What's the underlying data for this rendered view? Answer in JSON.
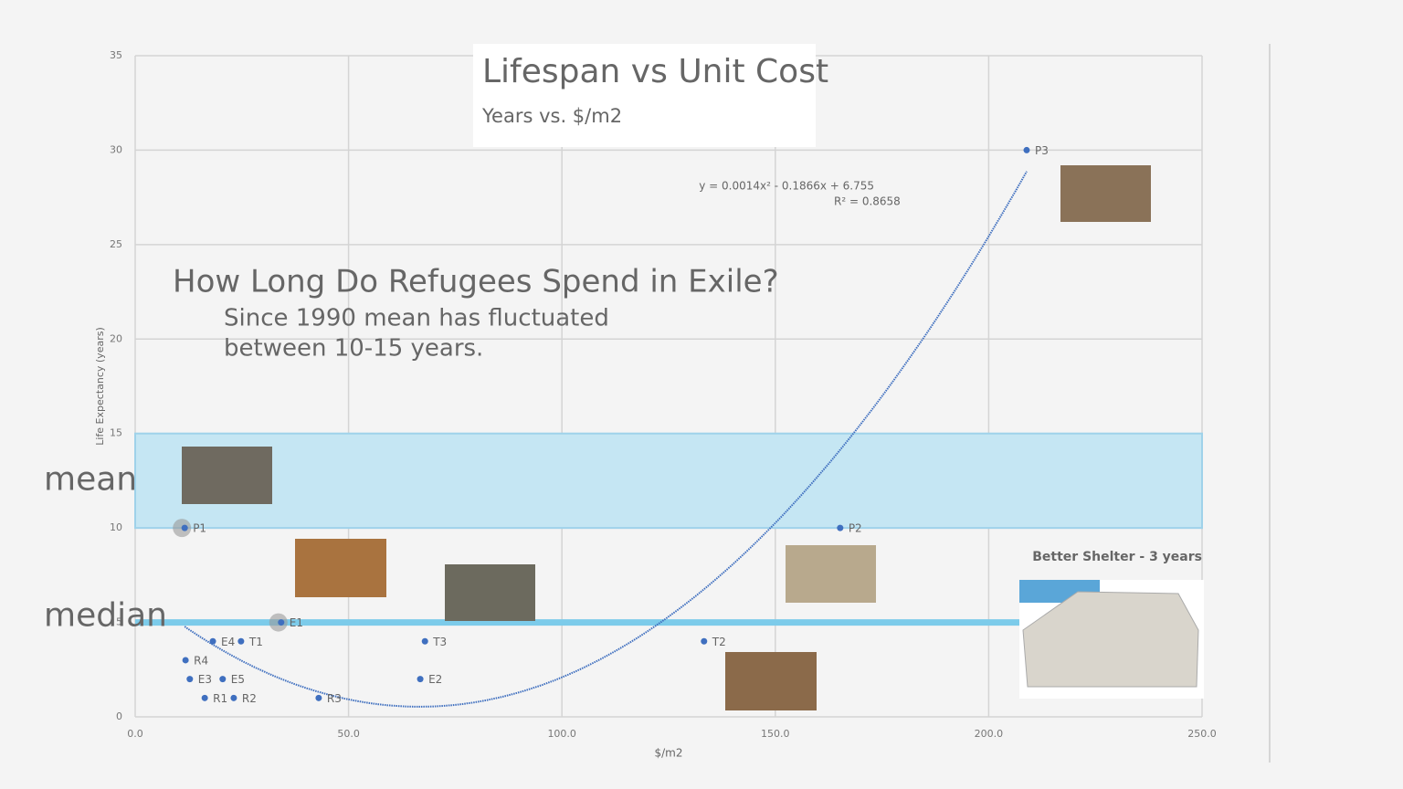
{
  "chart_data": {
    "type": "scatter",
    "title": "Lifespan vs Unit Cost",
    "subtitle": "Years vs. $/m2",
    "x_label": "$/m2",
    "y_label": "Life Expectancy (years)",
    "x": [
      208.9,
      11.6,
      165.2,
      34.2,
      18.2,
      24.8,
      67.9,
      133.3,
      11.8,
      12.8,
      20.5,
      66.8,
      16.3,
      23.1,
      43.0
    ],
    "values": [
      30,
      10,
      10,
      5,
      4,
      4,
      4,
      4,
      3,
      2,
      2,
      2,
      1,
      1,
      1
    ],
    "point_labels": [
      "P3",
      "P1",
      "P2",
      "E1",
      "E4",
      "T1",
      "T3",
      "T2",
      "R4",
      "E3",
      "E5",
      "E2",
      "R1",
      "R2",
      "R3"
    ],
    "highlight": [
      false,
      true,
      false,
      true,
      false,
      false,
      false,
      false,
      false,
      false,
      false,
      false,
      false,
      false,
      false
    ],
    "color": "#3f6fbf",
    "xlim": [
      0,
      250
    ],
    "xticks": [
      {
        "value": 0,
        "label": "0.0"
      },
      {
        "value": 50,
        "label": "50.0"
      },
      {
        "value": 100,
        "label": "100.0"
      },
      {
        "value": 150,
        "label": "150.0"
      },
      {
        "value": 200,
        "label": "200.0"
      },
      {
        "value": 250,
        "label": "250.0"
      }
    ],
    "ylim": [
      0,
      35
    ],
    "yticks": [
      0,
      5,
      10,
      15,
      20,
      25,
      30,
      35
    ],
    "grid": true,
    "trendline": {
      "coefficients": [
        0.0014,
        -0.1866,
        6.755
      ],
      "equation": "y = 0.0014x² - 0.1866x + 6.755",
      "r2": "R² = 0.8658",
      "color": "#3f6fbf"
    },
    "band": {
      "label": "mean",
      "from": 10,
      "to": 15,
      "color": "#c5e6f3"
    },
    "reference_line": {
      "label": "median",
      "value": 5,
      "color": "#7ccbea"
    },
    "annotations": {
      "heading": "How Long Do Refugees Spend in Exile?",
      "lines": [
        "Since 1990 mean has fluctuated",
        "between 10-15 years."
      ],
      "shelter_note": "Better Shelter - 3 years"
    }
  }
}
